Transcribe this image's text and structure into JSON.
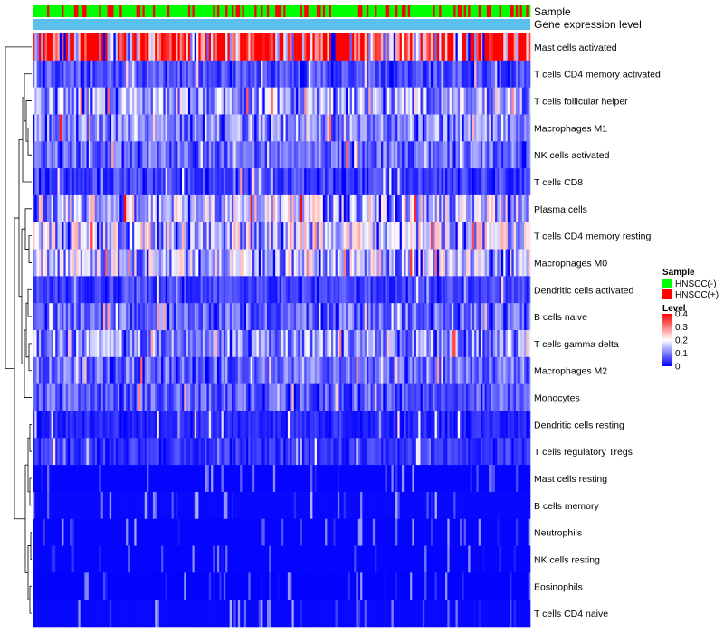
{
  "chart_data": {
    "type": "heatmap",
    "title": "",
    "n_columns": 240,
    "annotation_rows": [
      {
        "name": "Sample"
      },
      {
        "name": "Gene expression level"
      }
    ],
    "rows": [
      {
        "label": "Mast cells activated",
        "mean_level": 0.33
      },
      {
        "label": "T cells CD4 memory activated",
        "mean_level": 0.06
      },
      {
        "label": "T cells follicular helper",
        "mean_level": 0.12
      },
      {
        "label": "Macrophages M1",
        "mean_level": 0.1
      },
      {
        "label": "NK cells activated",
        "mean_level": 0.08
      },
      {
        "label": "T cells CD8",
        "mean_level": 0.05
      },
      {
        "label": "Plasma cells",
        "mean_level": 0.15
      },
      {
        "label": "T cells CD4 memory resting",
        "mean_level": 0.15
      },
      {
        "label": "Macrophages M0",
        "mean_level": 0.14
      },
      {
        "label": "Dendritic cells activated",
        "mean_level": 0.05
      },
      {
        "label": "B cells naive",
        "mean_level": 0.08
      },
      {
        "label": "T cells gamma delta",
        "mean_level": 0.11
      },
      {
        "label": "Macrophages M2",
        "mean_level": 0.08
      },
      {
        "label": "Monocytes",
        "mean_level": 0.07
      },
      {
        "label": "Dendritic cells resting",
        "mean_level": 0.03
      },
      {
        "label": "T cells regulatory  Tregs",
        "mean_level": 0.04
      },
      {
        "label": "Mast cells resting",
        "mean_level": 0.01
      },
      {
        "label": "B cells memory",
        "mean_level": 0.02
      },
      {
        "label": "Neutrophils",
        "mean_level": 0.01
      },
      {
        "label": "NK cells resting",
        "mean_level": 0.01
      },
      {
        "label": "Eosinophils",
        "mean_level": 0.005
      },
      {
        "label": "T cells CD4 naive",
        "mean_level": 0.02
      }
    ],
    "legend": {
      "sample": {
        "title": "Sample",
        "entries": [
          {
            "label": "HNSCC(-)",
            "color": "#00ff00"
          },
          {
            "label": "HNSCC(+)",
            "color": "#ff0000"
          }
        ]
      },
      "level": {
        "title": "Level",
        "ticks": [
          {
            "value": 0.4,
            "label": "0.4"
          },
          {
            "value": 0.3,
            "label": "0.3"
          },
          {
            "value": 0.2,
            "label": "0.2"
          },
          {
            "value": 0.1,
            "label": "0.1"
          },
          {
            "value": 0,
            "label": "0"
          }
        ],
        "range": [
          0,
          0.4
        ],
        "colors": [
          "#0000ff",
          "#ffffff",
          "#ff0000"
        ]
      }
    },
    "gene_expression_color": "#5bc0eb",
    "hnscc_positive_fraction": 0.28,
    "placement": "legend right"
  }
}
